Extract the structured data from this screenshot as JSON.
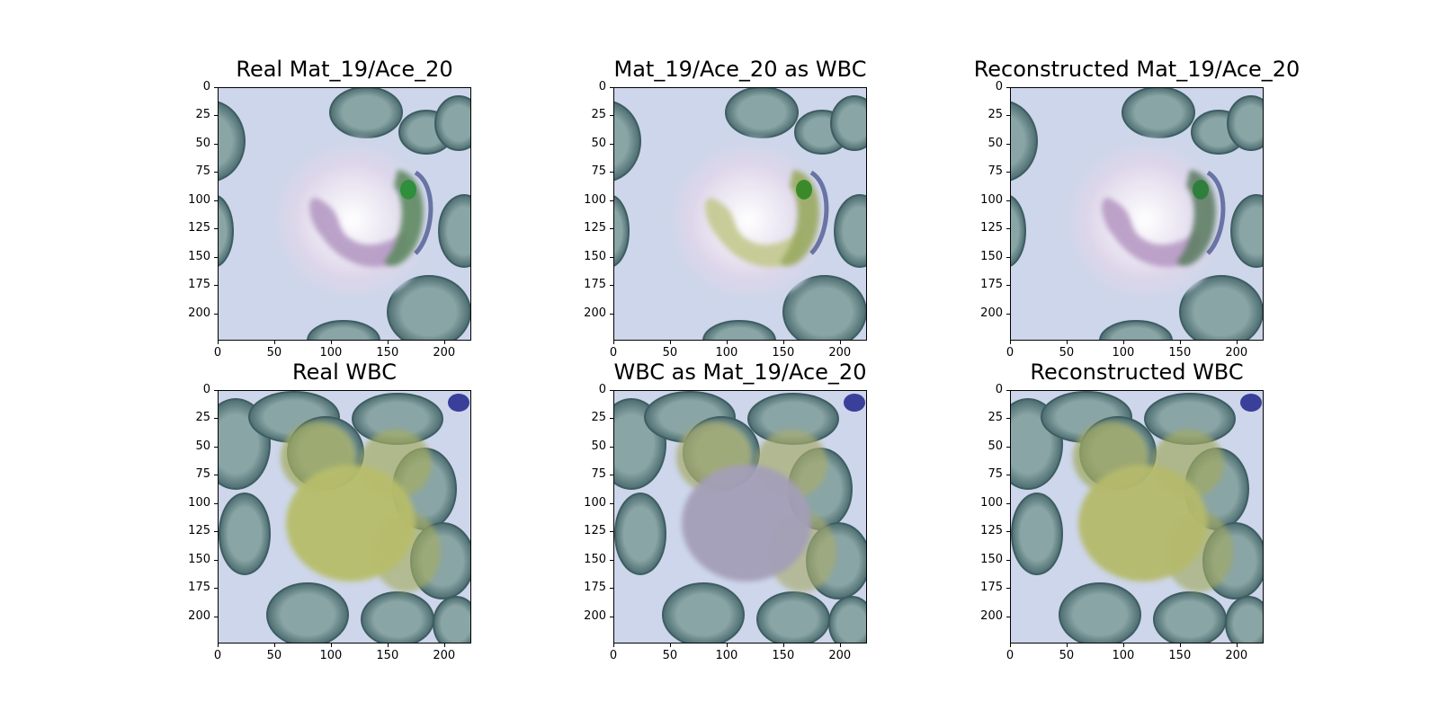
{
  "figure": {
    "panels": [
      {
        "id": "p1",
        "title": "Real Mat_19/Ace_20",
        "scene": "wbc-pale",
        "nucleus_color": "#b59ac4",
        "lobe_color": "#5e8a62",
        "blob_color": "#2f8f3c"
      },
      {
        "id": "p2",
        "title": "Mat_19/Ace_20 as WBC",
        "scene": "wbc-pale",
        "nucleus_color": "#c3c98e",
        "lobe_color": "#9aaa60",
        "blob_color": "#3a8a2a"
      },
      {
        "id": "p3",
        "title": "Reconstructed Mat_19/Ace_20",
        "scene": "wbc-pale",
        "nucleus_color": "#b79ac4",
        "lobe_color": "#607f66",
        "blob_color": "#2f7f3c"
      },
      {
        "id": "p4",
        "title": "Real WBC",
        "scene": "wbc-dense",
        "nucleus_color": "#b7bd6a",
        "lobe_color": "#a4ad63"
      },
      {
        "id": "p5",
        "title": "WBC as Mat_19/Ace_20",
        "scene": "wbc-dense",
        "nucleus_color": "#a49fb8",
        "lobe_color": "#a7ac6e"
      },
      {
        "id": "p6",
        "title": "Reconstructed WBC",
        "scene": "wbc-dense",
        "nucleus_color": "#b5ba6c",
        "lobe_color": "#a2aa64"
      }
    ],
    "axis": {
      "x_ticks": [
        "0",
        "50",
        "100",
        "150",
        "200"
      ],
      "y_ticks": [
        "0",
        "25",
        "50",
        "75",
        "100",
        "125",
        "150",
        "175",
        "200"
      ],
      "x_tick_values": [
        0,
        50,
        100,
        150,
        200
      ],
      "y_tick_values": [
        0,
        25,
        50,
        75,
        100,
        125,
        150,
        175,
        200
      ],
      "extent": 224
    },
    "colors": {
      "background": "#cdd6ea",
      "rbc_edge": "#4b6c70",
      "rbc_center": "#8aa5a5"
    }
  }
}
